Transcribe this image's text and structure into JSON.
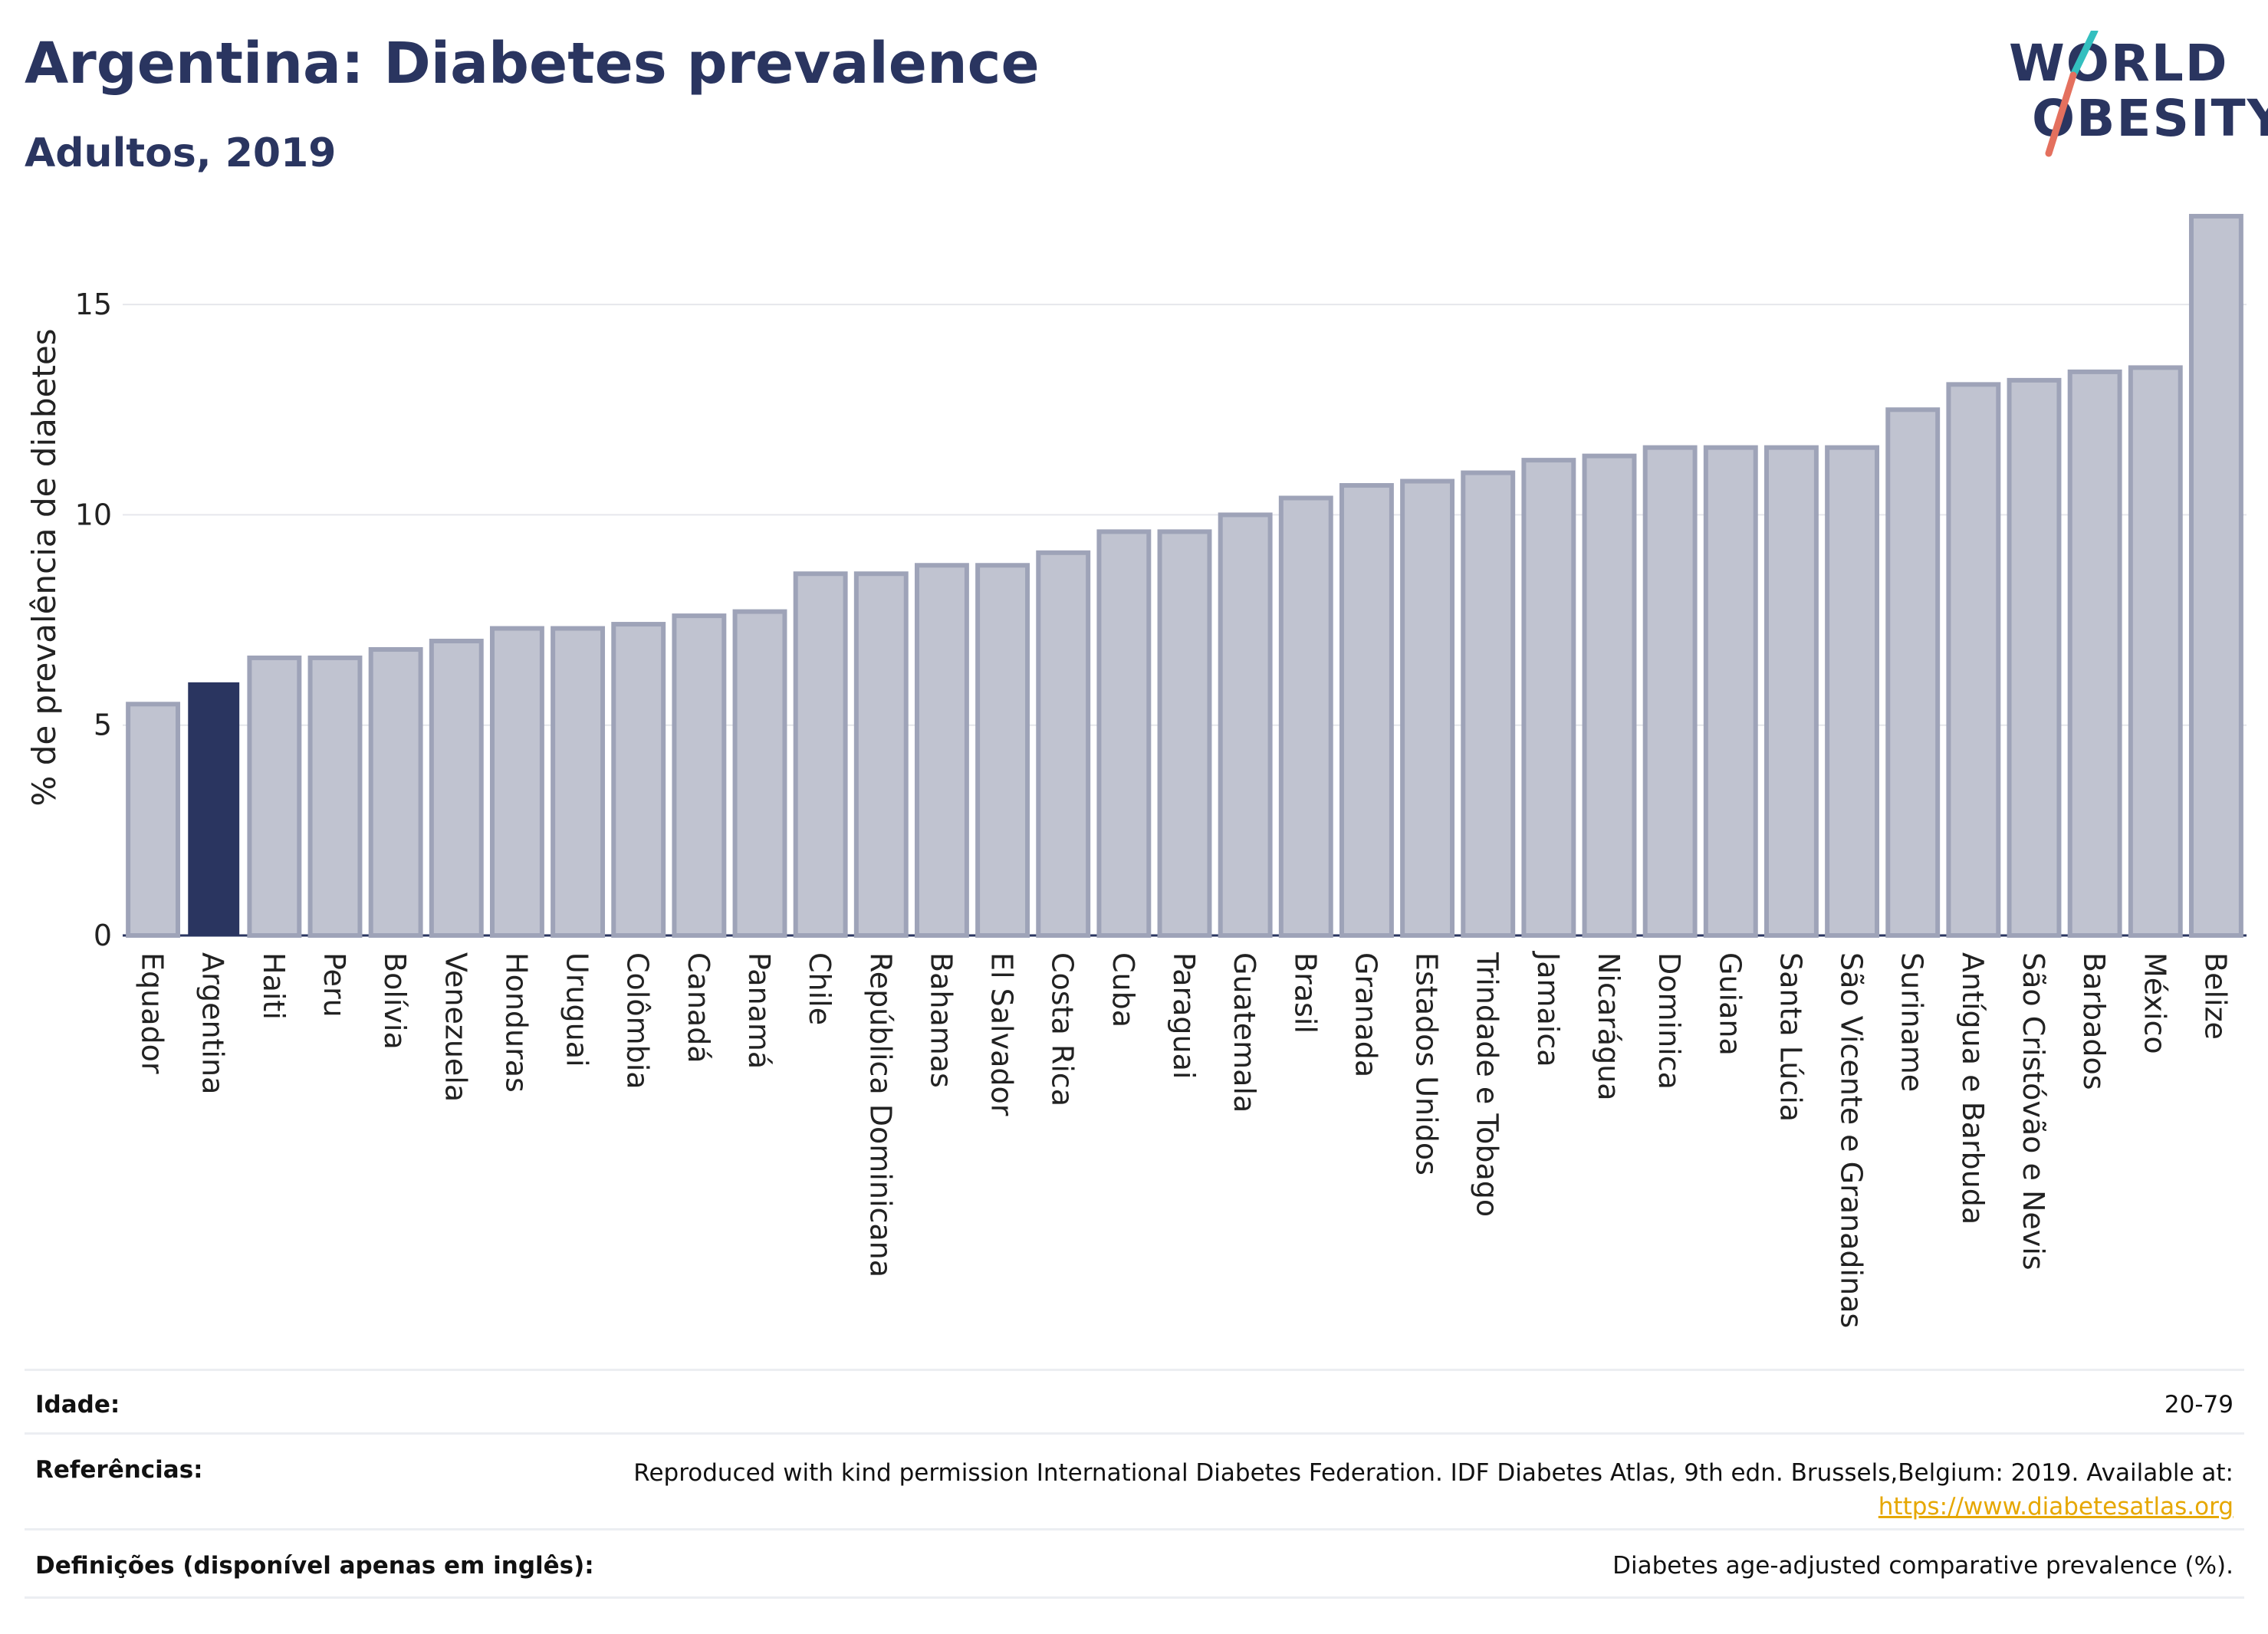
{
  "header": {
    "title": "Argentina: Diabetes prevalence",
    "subtitle": "Adultos, 2019"
  },
  "logo": {
    "line1": "WORLD",
    "line2": "OBESITY"
  },
  "chart_data": {
    "type": "bar",
    "title": "Argentina: Diabetes prevalence",
    "subtitle": "Adultos, 2019",
    "xlabel": "",
    "ylabel": "% de prevalência de diabetes",
    "ylim": [
      0,
      17.5
    ],
    "yticks": [
      0,
      5,
      10,
      15
    ],
    "grid": true,
    "highlight": "Argentina",
    "colors": {
      "default": "#c0c3d0",
      "default_border": "#9ea3b8",
      "highlight": "#2a3560"
    },
    "categories": [
      "Equador",
      "Argentina",
      "Haiti",
      "Peru",
      "Bolívia",
      "Venezuela",
      "Honduras",
      "Uruguai",
      "Colômbia",
      "Canadá",
      "Panamá",
      "Chile",
      "República Dominicana",
      "Bahamas",
      "El Salvador",
      "Costa Rica",
      "Cuba",
      "Paraguai",
      "Guatemala",
      "Brasil",
      "Granada",
      "Estados Unidos",
      "Trindade e Tobago",
      "Jamaica",
      "Nicarágua",
      "Dominica",
      "Guiana",
      "Santa Lúcia",
      "São Vicente e Granadinas",
      "Suriname",
      "Antígua e Barbuda",
      "São Cristóvão e Nevis",
      "Barbados",
      "México",
      "Belize"
    ],
    "values": [
      5.5,
      6.0,
      6.6,
      6.6,
      6.8,
      7.0,
      7.3,
      7.3,
      7.4,
      7.6,
      7.7,
      8.6,
      8.6,
      8.8,
      8.8,
      9.1,
      9.6,
      9.6,
      10.0,
      10.4,
      10.7,
      10.8,
      11.0,
      11.3,
      11.4,
      11.6,
      11.6,
      11.6,
      11.6,
      12.5,
      13.1,
      13.2,
      13.4,
      13.5,
      17.1
    ]
  },
  "info": {
    "age_label": "Idade:",
    "age_value": "20-79",
    "refs_label": "Referências:",
    "refs_text": "Reproduced with kind permission International Diabetes Federation. IDF Diabetes Atlas, 9th edn. Brussels,Belgium: 2019. Available at:",
    "refs_link": "https://www.diabetesatlas.org",
    "defs_label": "Definições (disponível apenas em inglês):",
    "defs_value": "Diabetes age-adjusted comparative prevalence (%)."
  }
}
